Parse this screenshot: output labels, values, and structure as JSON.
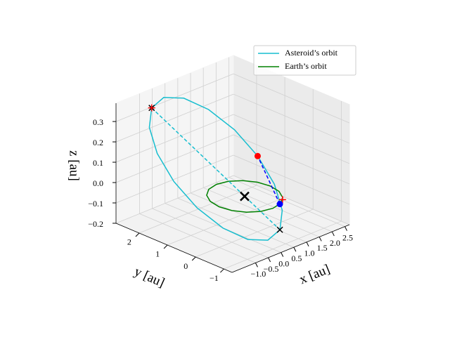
{
  "chart_data": {
    "type": "line3d",
    "xlabel": "x [au]",
    "ylabel": "y [au]",
    "zlabel": "z [au]",
    "xlim": [
      -1.92,
      2.68
    ],
    "ylim": [
      -1.29,
      2.82
    ],
    "zlim": [
      -0.2,
      0.39
    ],
    "xticks": [
      {
        "value": -1.0,
        "label": "−1.0"
      },
      {
        "value": -0.5,
        "label": "−0.5"
      },
      {
        "value": 0.0,
        "label": "0.0"
      },
      0.5,
      {
        "value": 1.0,
        "label": "1.0"
      },
      1.5,
      {
        "value": 2.0,
        "label": "2.0"
      },
      2.5
    ],
    "yticks": [
      {
        "value": -1,
        "label": "−1"
      },
      0,
      1,
      2
    ],
    "zticks": [
      {
        "value": -0.2,
        "label": "−0.2"
      },
      {
        "value": -0.1,
        "label": "−0.1"
      },
      {
        "value": 0.0,
        "label": "0.0"
      },
      0.1,
      0.2,
      0.3
    ],
    "grid": true,
    "legend": "upper right",
    "series": [
      {
        "name": "Asteroid’s orbit",
        "color": "#17becf",
        "x": [
          0.396,
          0.895,
          1.207,
          1.288,
          1.122,
          0.736,
          0.189,
          -0.435,
          -1.044,
          -1.543,
          -1.855,
          -1.936,
          -1.77,
          -1.384,
          -0.837,
          -0.213,
          0.396
        ],
        "y": [
          -0.891,
          -0.522,
          0.039,
          0.703,
          1.372,
          1.943,
          2.329,
          2.472,
          2.349,
          1.98,
          1.419,
          0.755,
          0.086,
          -0.485,
          -0.871,
          -1.014,
          -0.891
        ],
        "z": [
          -0.132,
          -0.083,
          -0.004,
          0.091,
          0.189,
          0.275,
          0.336,
          0.363,
          0.35,
          0.301,
          0.222,
          0.127,
          0.029,
          -0.057,
          -0.118,
          -0.145,
          -0.132
        ]
      },
      {
        "name": "Earth’s orbit",
        "color": "#008000",
        "x": [
          1,
          0.924,
          0.707,
          0.383,
          0,
          -0.383,
          -0.707,
          -0.924,
          -1,
          -0.924,
          -0.707,
          -0.383,
          0,
          0.383,
          0.707,
          0.924,
          1
        ],
        "y": [
          0,
          0.383,
          0.707,
          0.924,
          1,
          0.924,
          0.707,
          0.383,
          0,
          -0.383,
          -0.707,
          -0.924,
          -1,
          -0.924,
          -0.707,
          -0.383,
          0
        ],
        "z": [
          0,
          0,
          0,
          0,
          0,
          0,
          0,
          0,
          0,
          0,
          0,
          0,
          0,
          0,
          0,
          0,
          0
        ]
      }
    ],
    "lines": [
      {
        "color": "#17becf",
        "style": "dashed",
        "x": [
          -1.044,
          0.396
        ],
        "y": [
          2.349,
          -0.891
        ],
        "z": [
          0.35,
          -0.132
        ]
      },
      {
        "color": "#0000ff",
        "style": "dashed",
        "x": [
          0.34,
          1.288
        ],
        "y": [
          -0.94,
          0.703
        ],
        "z": [
          0,
          0.091
        ]
      }
    ],
    "points": [
      {
        "x": 0,
        "y": 0,
        "z": 0,
        "color": "#000000",
        "marker": "x",
        "size": 6
      },
      {
        "x": -1.044,
        "y": 2.349,
        "z": 0.35,
        "color": "#000000",
        "marker": "x",
        "size": 4
      },
      {
        "x": 0.396,
        "y": -0.891,
        "z": -0.132,
        "color": "#000000",
        "marker": "x",
        "size": 4
      },
      {
        "x": -1.044,
        "y": 2.349,
        "z": 0.35,
        "color": "#ff0000",
        "marker": "+",
        "size": 5
      },
      {
        "x": 0.6,
        "y": -0.8,
        "z": 0,
        "color": "#ff0000",
        "marker": "+",
        "size": 5
      },
      {
        "x": 0.34,
        "y": -0.94,
        "z": 0,
        "color": "#0000ff",
        "marker": "o",
        "size": 4.5
      },
      {
        "x": 1.288,
        "y": 0.703,
        "z": 0.091,
        "color": "#ff0000",
        "marker": "o",
        "size": 4.5
      }
    ]
  }
}
